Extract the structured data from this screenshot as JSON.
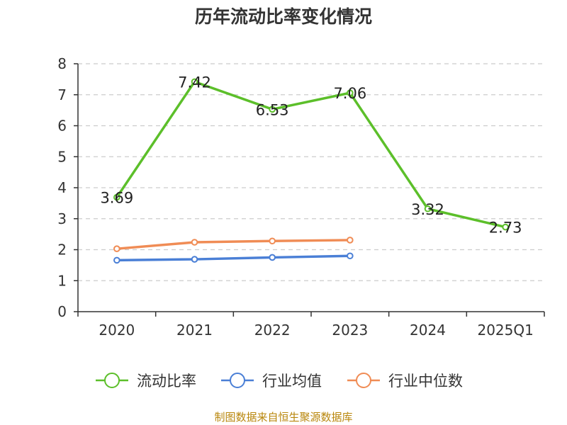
{
  "chart_data": {
    "type": "line",
    "title": "历年流动比率变化情况",
    "categories": [
      "2020",
      "2021",
      "2022",
      "2023",
      "2024",
      "2025Q1"
    ],
    "ylim": [
      0,
      8
    ],
    "yticks": [
      "0",
      "1",
      "2",
      "3",
      "4",
      "5",
      "6",
      "7",
      "8"
    ],
    "grid": true,
    "legend_position": "bottom",
    "series": [
      {
        "name": "流动比率",
        "color": "#5cbf2a",
        "values": [
          3.69,
          7.42,
          6.53,
          7.06,
          3.32,
          2.73
        ],
        "labels": [
          "3.69",
          "7.42",
          "6.53",
          "7.06",
          "3.32",
          "2.73"
        ],
        "show_labels": true
      },
      {
        "name": "行业均值",
        "color": "#4a7fd6",
        "values": [
          1.66,
          1.69,
          1.75,
          1.8,
          null,
          null
        ],
        "show_labels": false
      },
      {
        "name": "行业中位数",
        "color": "#f08c55",
        "values": [
          2.03,
          2.24,
          2.28,
          2.31,
          null,
          null
        ],
        "show_labels": false
      }
    ]
  },
  "footer": "制图数据来自恒生聚源数据库"
}
